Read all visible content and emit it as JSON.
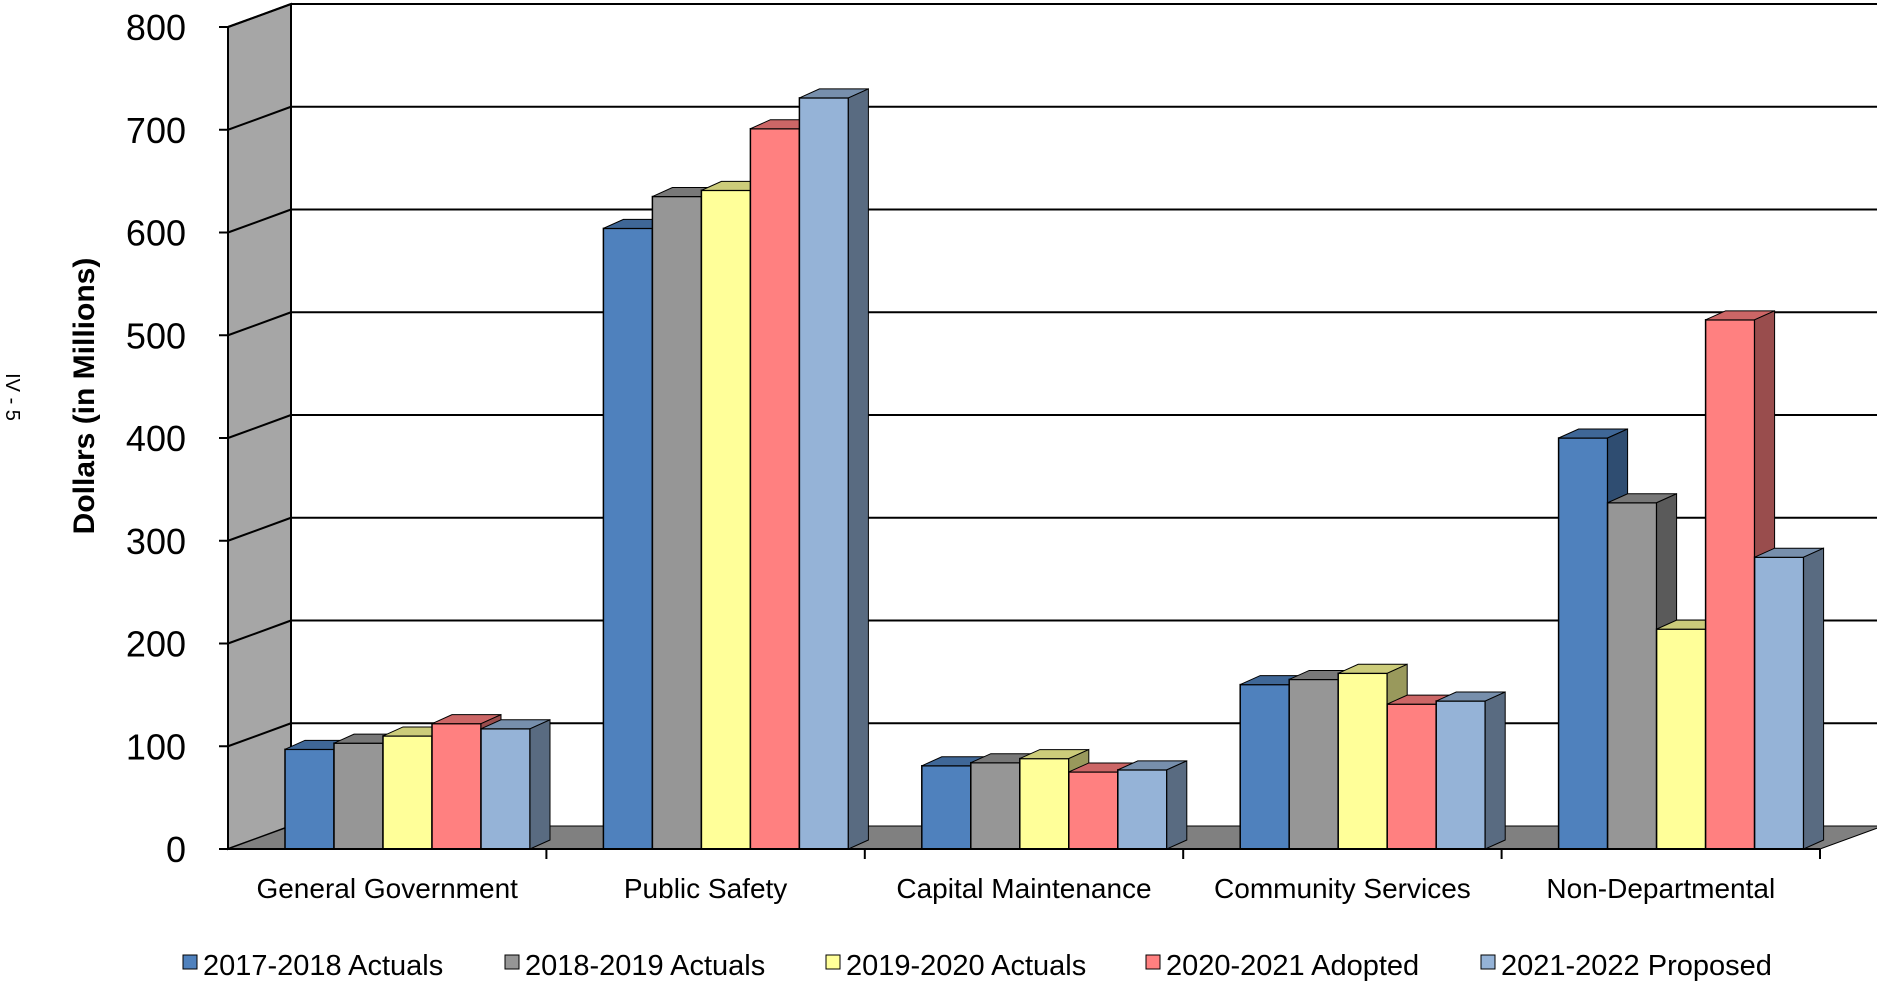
{
  "page_label": "IV - 5",
  "chart_data": {
    "type": "bar",
    "three_d": true,
    "title": "",
    "xlabel": "",
    "ylabel": "Dollars (in Millions)",
    "ylim": [
      0,
      800
    ],
    "yticks": [
      "0",
      "100",
      "200",
      "300",
      "400",
      "500",
      "600",
      "700",
      "800"
    ],
    "grid": true,
    "legend_position": "bottom",
    "categories": [
      "General Government",
      "Public Safety",
      "Capital Maintenance",
      "Community Services",
      "Non-Departmental"
    ],
    "series": [
      {
        "name": "2017-2018 Actuals",
        "color": "#4F81BD",
        "values": [
          97,
          604,
          81,
          160,
          400
        ]
      },
      {
        "name": "2018-2019 Actuals",
        "color": "#969696",
        "values": [
          103,
          635,
          84,
          165,
          337
        ]
      },
      {
        "name": "2019-2020 Actuals",
        "color": "#FFFF99",
        "values": [
          110,
          641,
          88,
          171,
          214
        ]
      },
      {
        "name": "2020-2021 Adopted",
        "color": "#FF8080",
        "values": [
          122,
          701,
          75,
          141,
          515
        ]
      },
      {
        "name": "2021-2022 Proposed",
        "color": "#95B3D7",
        "values": [
          117,
          731,
          77,
          144,
          284
        ]
      }
    ]
  }
}
